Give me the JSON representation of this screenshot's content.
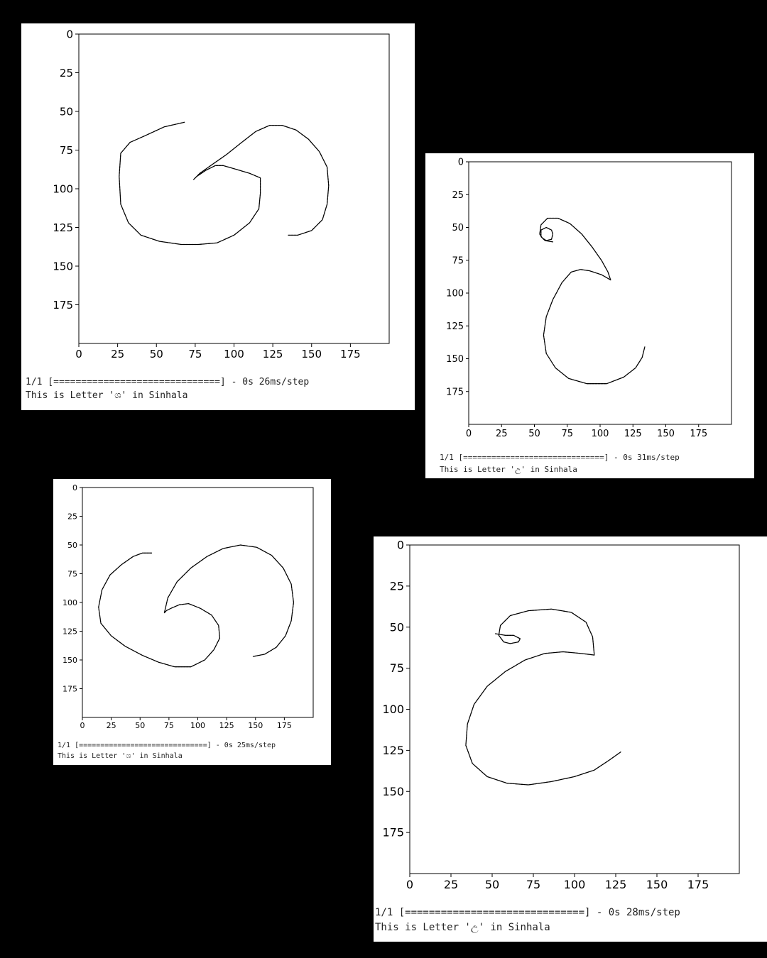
{
  "colors": {
    "background": "#000000",
    "panel": "#ffffff",
    "stroke": "#000000",
    "text": "#222222"
  },
  "panels": [
    {
      "progress_line": "1/1 [==============================] - 0s 26ms/step",
      "result_line": "This is Letter 'ශ' in Sinhala",
      "chart_data": {
        "type": "image",
        "xlim": [
          0,
          200
        ],
        "ylim": [
          200,
          0
        ],
        "xticks": [
          0,
          25,
          50,
          75,
          100,
          125,
          150,
          175
        ],
        "yticks": [
          0,
          25,
          50,
          75,
          100,
          125,
          150,
          175
        ],
        "strokes": [
          [
            [
              68,
              57
            ],
            [
              55,
              60
            ],
            [
              42,
              66
            ],
            [
              33,
              70
            ],
            [
              27,
              77
            ],
            [
              26,
              92
            ],
            [
              27,
              110
            ],
            [
              32,
              122
            ],
            [
              40,
              130
            ],
            [
              52,
              134
            ],
            [
              66,
              136
            ],
            [
              77,
              136
            ],
            [
              89,
              135
            ],
            [
              100,
              130
            ],
            [
              110,
              122
            ],
            [
              116,
              113
            ],
            [
              117,
              103
            ],
            [
              117,
              93
            ],
            [
              110,
              90
            ],
            [
              100,
              87
            ],
            [
              93,
              85
            ],
            [
              88,
              85
            ],
            [
              82,
              88
            ],
            [
              76,
              92
            ],
            [
              74,
              94
            ],
            [
              78,
              90
            ],
            [
              85,
              85
            ],
            [
              95,
              78
            ],
            [
              105,
              70
            ],
            [
              114,
              63
            ],
            [
              123,
              59
            ],
            [
              131,
              59
            ],
            [
              140,
              62
            ],
            [
              148,
              68
            ],
            [
              155,
              76
            ],
            [
              160,
              86
            ],
            [
              161,
              98
            ],
            [
              160,
              110
            ],
            [
              157,
              120
            ],
            [
              150,
              127
            ],
            [
              141,
              130
            ],
            [
              135,
              130
            ]
          ]
        ]
      }
    },
    {
      "progress_line": "1/1 [==============================] - 0s 31ms/step",
      "result_line": "This is Letter 'උ' in Sinhala",
      "chart_data": {
        "type": "image",
        "xlim": [
          0,
          200
        ],
        "ylim": [
          200,
          0
        ],
        "xticks": [
          0,
          25,
          50,
          75,
          100,
          125,
          150,
          175
        ],
        "yticks": [
          0,
          25,
          50,
          75,
          100,
          125,
          150,
          175
        ],
        "strokes": [
          [
            [
              64,
              61
            ],
            [
              58,
              60
            ],
            [
              55,
              57
            ],
            [
              55,
              52
            ],
            [
              59,
              50
            ],
            [
              63,
              52
            ],
            [
              64,
              55
            ],
            [
              63,
              59
            ],
            [
              59,
              60
            ],
            [
              56,
              58
            ],
            [
              54,
              55
            ],
            [
              55,
              48
            ],
            [
              60,
              43
            ],
            [
              68,
              43
            ],
            [
              77,
              47
            ],
            [
              86,
              55
            ],
            [
              94,
              65
            ],
            [
              101,
              75
            ],
            [
              106,
              84
            ],
            [
              108,
              90
            ],
            [
              101,
              86
            ],
            [
              92,
              83
            ],
            [
              85,
              82
            ],
            [
              78,
              84
            ],
            [
              71,
              92
            ],
            [
              64,
              105
            ],
            [
              59,
              118
            ],
            [
              57,
              132
            ],
            [
              59,
              146
            ],
            [
              66,
              157
            ],
            [
              76,
              165
            ],
            [
              90,
              169
            ],
            [
              105,
              169
            ],
            [
              118,
              164
            ],
            [
              127,
              157
            ],
            [
              132,
              149
            ],
            [
              134,
              141
            ]
          ]
        ]
      }
    },
    {
      "progress_line": "1/1 [==============================] - 0s 25ms/step",
      "result_line": "This is Letter 'ශ' in Sinhala",
      "chart_data": {
        "type": "image",
        "xlim": [
          0,
          200
        ],
        "ylim": [
          200,
          0
        ],
        "xticks": [
          0,
          25,
          50,
          75,
          100,
          125,
          150,
          175
        ],
        "yticks": [
          0,
          25,
          50,
          75,
          100,
          125,
          150,
          175
        ],
        "strokes": [
          [
            [
              60,
              57
            ],
            [
              52,
              57
            ],
            [
              44,
              60
            ],
            [
              34,
              67
            ],
            [
              24,
              76
            ],
            [
              17,
              89
            ],
            [
              14,
              104
            ],
            [
              16,
              118
            ],
            [
              25,
              129
            ],
            [
              37,
              138
            ],
            [
              52,
              146
            ],
            [
              66,
              152
            ],
            [
              80,
              156
            ],
            [
              94,
              156
            ],
            [
              106,
              150
            ],
            [
              114,
              141
            ],
            [
              119,
              131
            ],
            [
              118,
              120
            ],
            [
              112,
              111
            ],
            [
              102,
              105
            ],
            [
              92,
              101
            ],
            [
              84,
              102
            ],
            [
              77,
              105
            ],
            [
              73,
              107
            ],
            [
              71,
              109
            ],
            [
              74,
              96
            ],
            [
              82,
              82
            ],
            [
              94,
              70
            ],
            [
              108,
              60
            ],
            [
              122,
              53
            ],
            [
              137,
              50
            ],
            [
              151,
              52
            ],
            [
              164,
              59
            ],
            [
              174,
              70
            ],
            [
              181,
              84
            ],
            [
              183,
              100
            ],
            [
              181,
              116
            ],
            [
              176,
              129
            ],
            [
              168,
              139
            ],
            [
              158,
              145
            ],
            [
              148,
              147
            ]
          ]
        ]
      }
    },
    {
      "progress_line": "1/1 [==============================] - 0s 28ms/step",
      "result_line": "This is Letter 'උ' in Sinhala",
      "chart_data": {
        "type": "image",
        "xlim": [
          0,
          200
        ],
        "ylim": [
          200,
          0
        ],
        "xticks": [
          0,
          25,
          50,
          75,
          100,
          125,
          150,
          175
        ],
        "yticks": [
          0,
          25,
          50,
          75,
          100,
          125,
          150,
          175
        ],
        "strokes": [
          [
            [
              52,
              54
            ],
            [
              58,
              55
            ],
            [
              63,
              55
            ],
            [
              67,
              57
            ],
            [
              66,
              59
            ],
            [
              61,
              60
            ],
            [
              57,
              59
            ],
            [
              54,
              55
            ],
            [
              55,
              49
            ],
            [
              61,
              43
            ],
            [
              72,
              40
            ],
            [
              86,
              39
            ],
            [
              98,
              41
            ],
            [
              107,
              47
            ],
            [
              111,
              56
            ],
            [
              112,
              67
            ],
            [
              104,
              66
            ],
            [
              93,
              65
            ],
            [
              82,
              66
            ],
            [
              70,
              70
            ],
            [
              58,
              77
            ],
            [
              47,
              86
            ],
            [
              39,
              97
            ],
            [
              35,
              109
            ],
            [
              34,
              122
            ],
            [
              38,
              133
            ],
            [
              47,
              141
            ],
            [
              59,
              145
            ],
            [
              72,
              146
            ],
            [
              86,
              144
            ],
            [
              100,
              141
            ],
            [
              112,
              137
            ],
            [
              121,
              131
            ],
            [
              128,
              126
            ]
          ]
        ]
      }
    }
  ]
}
